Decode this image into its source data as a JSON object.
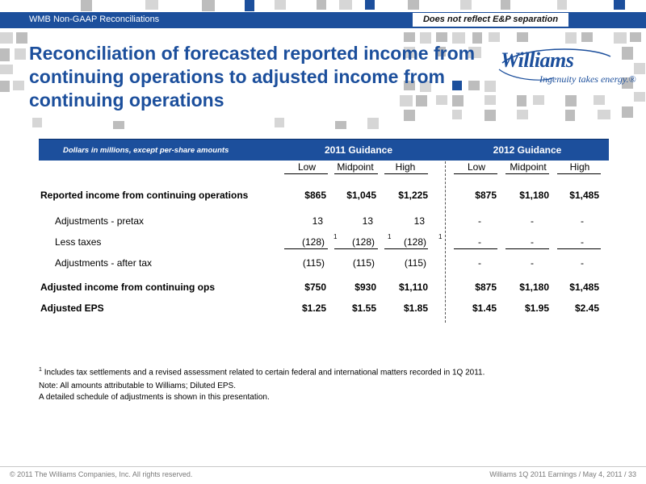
{
  "header": {
    "section_title": "WMB Non-GAAP Reconciliations",
    "notice": "Does not reflect E&P separation"
  },
  "slide": {
    "title": "Reconciliation of forecasted reported income from continuing operations to adjusted income from continuing operations"
  },
  "logo": {
    "word": "Williams",
    "reg": "®",
    "tagline": "Ingenuity takes energy.®"
  },
  "table": {
    "unit_note": "Dollars in millions, except per-share amounts",
    "groups": [
      "2011 Guidance",
      "2012 Guidance"
    ],
    "columns": [
      "Low",
      "Midpoint",
      "High",
      "Low",
      "Midpoint",
      "High"
    ],
    "footnote_marker": "1",
    "rows": [
      {
        "label": "Reported income from continuing operations",
        "values": [
          "$865",
          "$1,045",
          "$1,225",
          "$875",
          "$1,180",
          "$1,485"
        ]
      },
      {
        "label": "Adjustments - pretax",
        "values": [
          "13",
          "13",
          "13",
          "-",
          "-",
          "-"
        ]
      },
      {
        "label": "Less taxes",
        "values": [
          "(128)",
          "(128)",
          "(128)",
          "-",
          "-",
          "-"
        ]
      },
      {
        "label": "Adjustments - after tax",
        "values": [
          "(115)",
          "(115)",
          "(115)",
          "-",
          "-",
          "-"
        ]
      },
      {
        "label": "Adjusted income from continuing ops",
        "values": [
          "$750",
          "$930",
          "$1,110",
          "$875",
          "$1,180",
          "$1,485"
        ]
      },
      {
        "label": "Adjusted EPS",
        "values": [
          "$1.25",
          "$1.55",
          "$1.85",
          "$1.45",
          "$1.95",
          "$2.45"
        ]
      }
    ]
  },
  "notes": {
    "footnote_marker": "1",
    "footnote": "Includes tax settlements and a revised assessment related to certain federal and international matters recorded in 1Q 2011.",
    "note": "Note: All amounts attributable to Williams; Diluted EPS.",
    "schedule": "A detailed schedule of adjustments is shown in this presentation."
  },
  "footer": {
    "copyright": "© 2011 The Williams Companies, Inc. All rights reserved.",
    "right": "Williams 1Q 2011 Earnings / May 4, 2011 /  33"
  },
  "colors": {
    "brand_blue": "#1c4f9c",
    "tile_gray": "#bdbdbd"
  }
}
